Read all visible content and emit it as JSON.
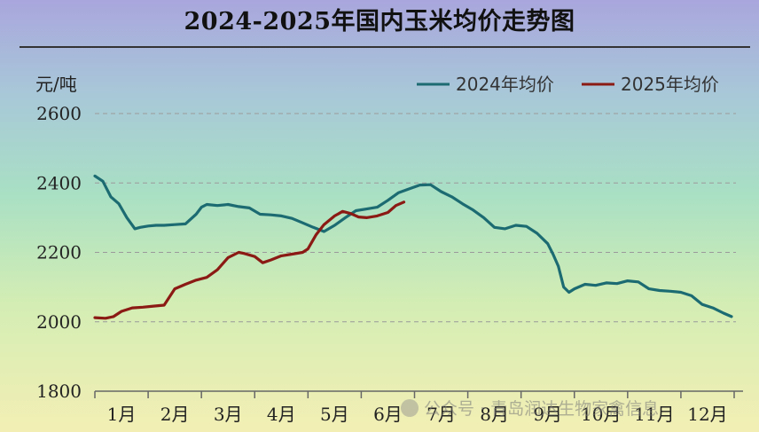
{
  "title": "2024-2025年国内玉米均价走势图",
  "watermark": "公众号 · 青岛润达生物家禽信息",
  "chart_data": {
    "type": "line",
    "ylabel": "元/吨",
    "ylim": [
      1800,
      2600
    ],
    "yticks": [
      1800,
      2000,
      2200,
      2400,
      2600
    ],
    "xlim": [
      1,
      13
    ],
    "x_tick_labels": [
      "1月",
      "2月",
      "3月",
      "4月",
      "5月",
      "6月",
      "7月",
      "8月",
      "9月",
      "10月",
      "11月",
      "12月"
    ],
    "grid": "horizontal dashed",
    "legend": "top-right",
    "series": [
      {
        "name": "2024年均价",
        "color": "#1c6b72",
        "x": [
          1.0,
          1.15,
          1.3,
          1.45,
          1.6,
          1.75,
          1.85,
          2.0,
          2.15,
          2.3,
          2.5,
          2.7,
          2.9,
          3.0,
          3.1,
          3.3,
          3.5,
          3.7,
          3.9,
          4.1,
          4.3,
          4.5,
          4.7,
          4.9,
          5.1,
          5.3,
          5.5,
          5.7,
          5.9,
          6.1,
          6.3,
          6.5,
          6.7,
          6.9,
          7.1,
          7.3,
          7.5,
          7.7,
          7.9,
          8.1,
          8.3,
          8.5,
          8.7,
          8.9,
          9.1,
          9.3,
          9.5,
          9.6,
          9.7,
          9.8,
          9.9,
          10.0,
          10.2,
          10.4,
          10.6,
          10.8,
          11.0,
          11.2,
          11.4,
          11.6,
          11.8,
          12.0,
          12.2,
          12.4,
          12.6,
          12.8,
          12.95
        ],
        "values": [
          2420,
          2405,
          2360,
          2340,
          2300,
          2268,
          2272,
          2276,
          2278,
          2278,
          2280,
          2282,
          2310,
          2330,
          2338,
          2335,
          2338,
          2332,
          2328,
          2310,
          2308,
          2305,
          2298,
          2285,
          2272,
          2260,
          2278,
          2300,
          2320,
          2325,
          2330,
          2350,
          2372,
          2383,
          2394,
          2395,
          2375,
          2360,
          2340,
          2322,
          2300,
          2272,
          2268,
          2278,
          2275,
          2255,
          2225,
          2195,
          2160,
          2100,
          2085,
          2095,
          2108,
          2105,
          2112,
          2110,
          2118,
          2115,
          2095,
          2090,
          2088,
          2085,
          2075,
          2050,
          2040,
          2025,
          2015
        ]
      },
      {
        "name": "2025年均价",
        "color": "#8b1a14",
        "x": [
          1.0,
          1.2,
          1.35,
          1.5,
          1.7,
          1.9,
          2.1,
          2.3,
          2.5,
          2.7,
          2.9,
          3.1,
          3.3,
          3.5,
          3.7,
          3.8,
          4.0,
          4.15,
          4.3,
          4.5,
          4.7,
          4.9,
          5.0,
          5.15,
          5.3,
          5.5,
          5.65,
          5.8,
          5.95,
          6.1,
          6.3,
          6.5,
          6.65,
          6.8
        ],
        "values": [
          2012,
          2010,
          2015,
          2030,
          2040,
          2042,
          2045,
          2048,
          2095,
          2108,
          2120,
          2128,
          2150,
          2185,
          2200,
          2197,
          2188,
          2170,
          2178,
          2190,
          2195,
          2200,
          2210,
          2250,
          2280,
          2305,
          2318,
          2312,
          2302,
          2300,
          2305,
          2315,
          2335,
          2345
        ]
      }
    ]
  }
}
